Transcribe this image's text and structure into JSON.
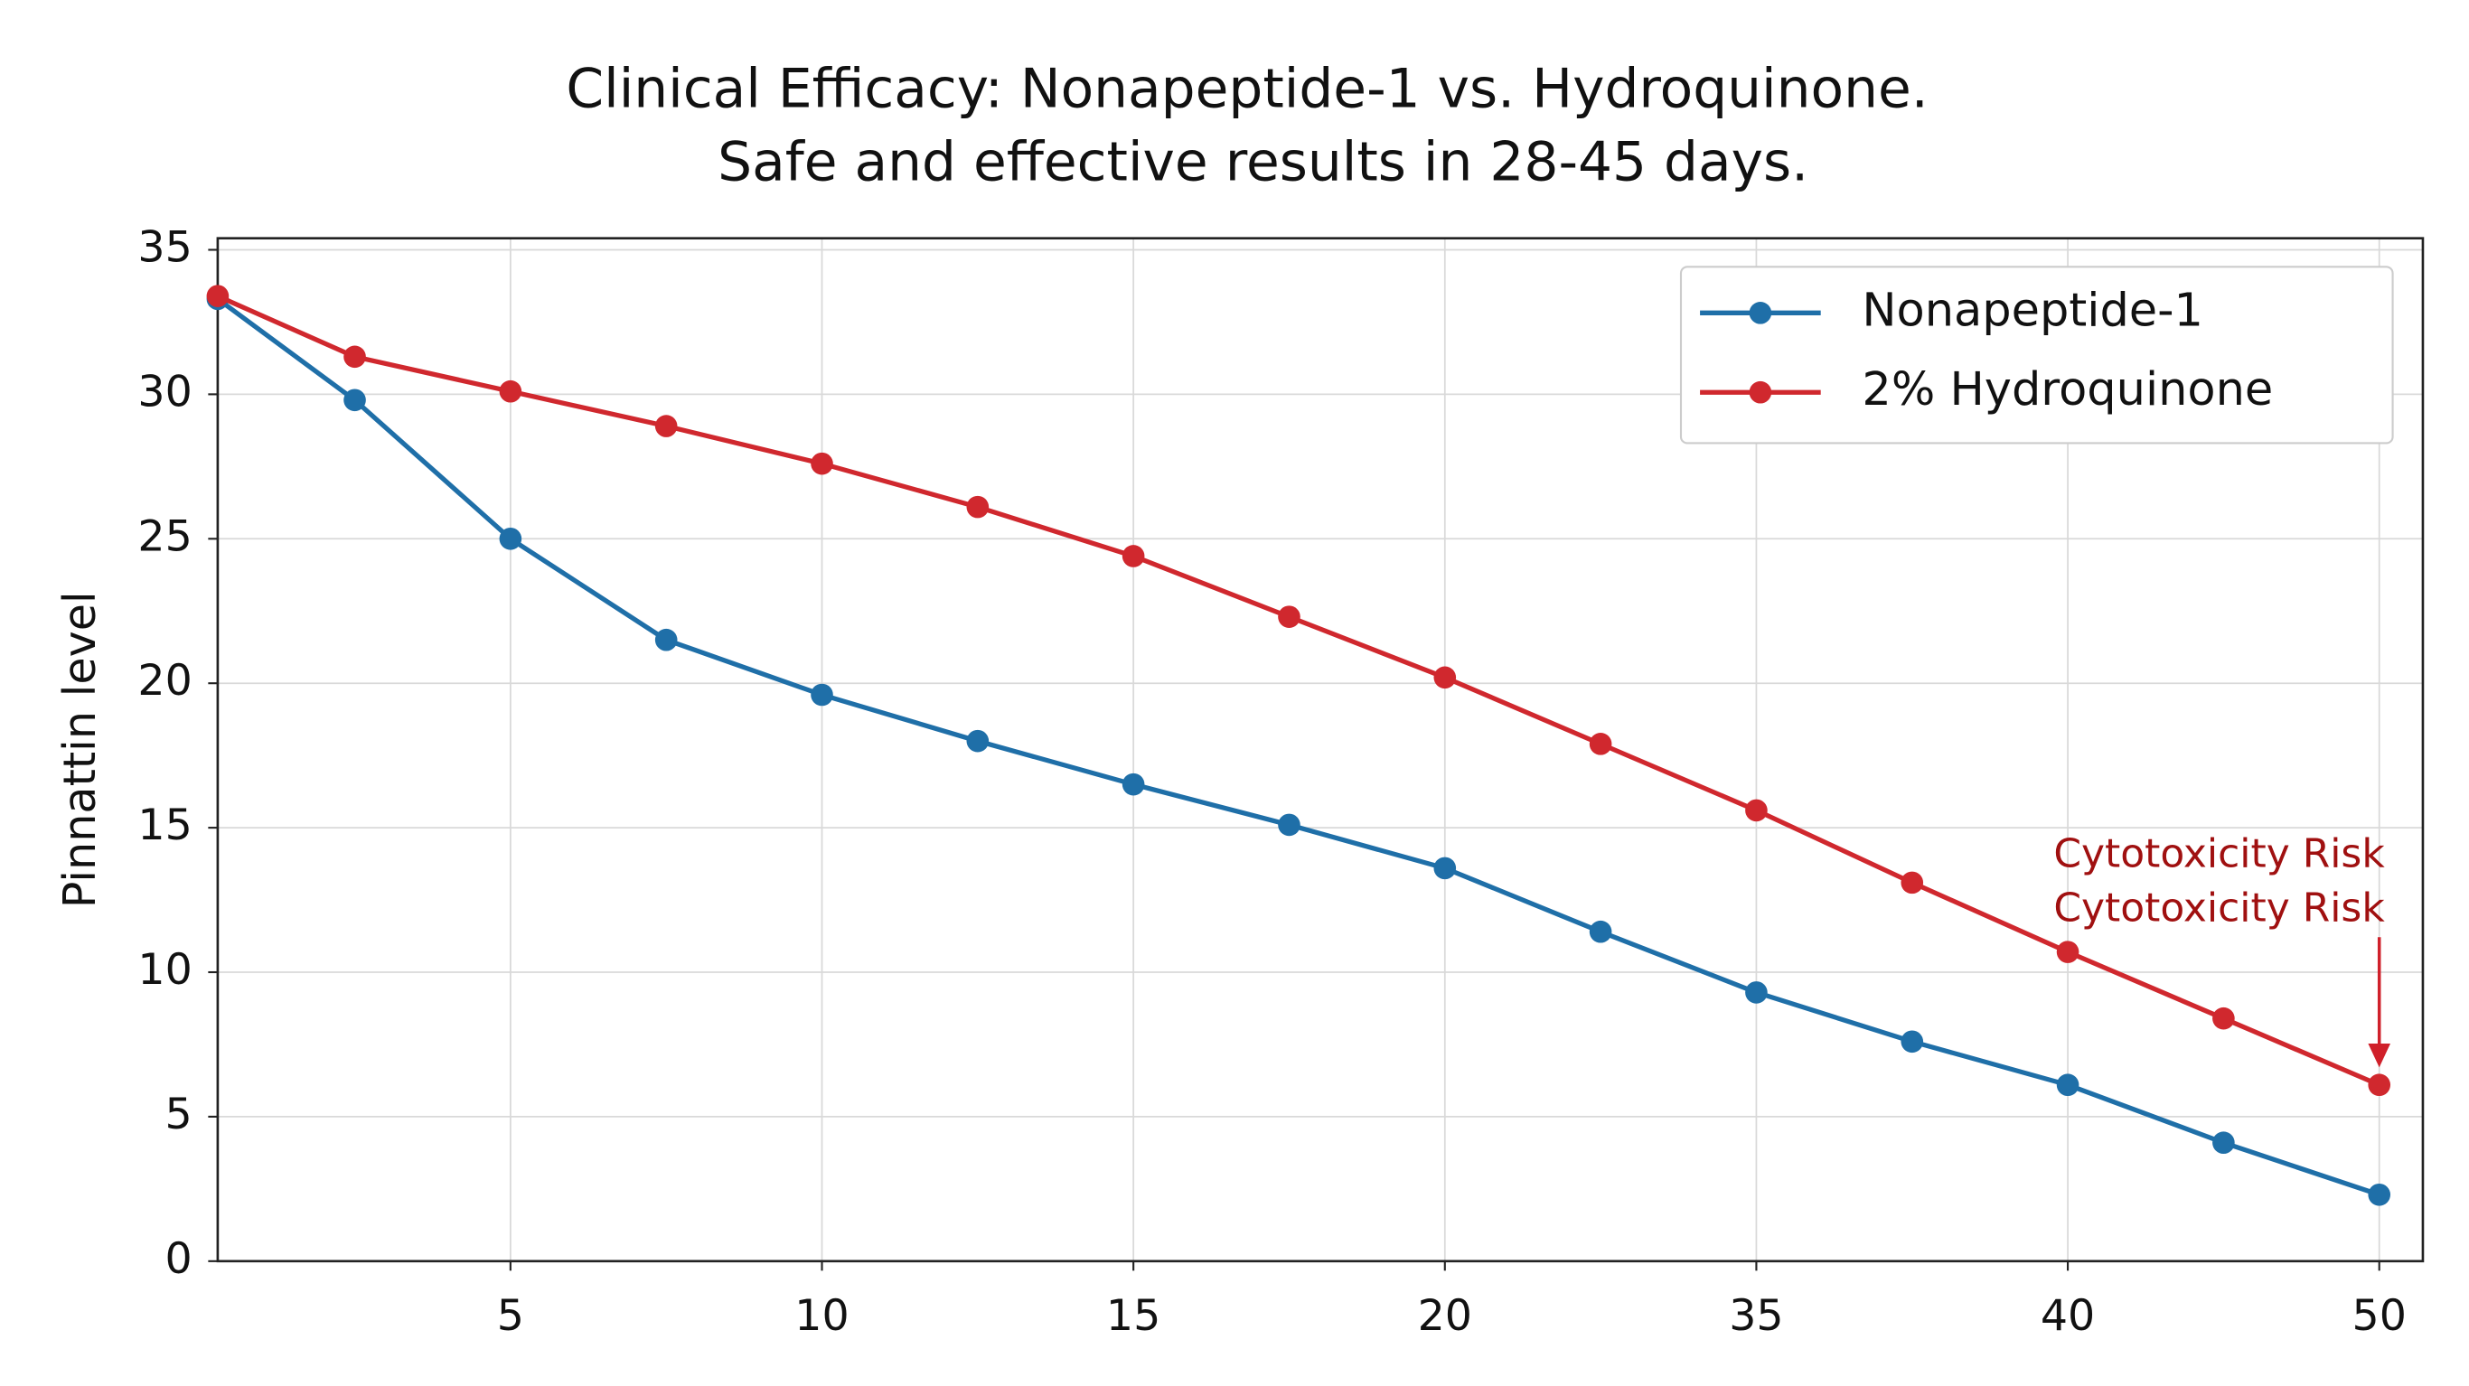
{
  "chart_data": {
    "type": "line",
    "title": "Clinical Efficacy: Nonapeptide-1 vs. Hydroquinone.",
    "subtitle": "Safe and effective results in 28-45 days.",
    "y_label": "Pinnattin level",
    "x": [
      0.3,
      2.5,
      5,
      7.5,
      10,
      12.5,
      15,
      17.5,
      20,
      22.5,
      25,
      27.5,
      30,
      32.5,
      35
    ],
    "series": [
      {
        "name": "Nonapeptide-1",
        "color": "#1f6fa8",
        "values": [
          33.3,
          29.8,
          25.0,
          21.5,
          19.6,
          18.0,
          16.5,
          15.1,
          13.6,
          11.4,
          9.3,
          7.6,
          6.1,
          4.1,
          2.3
        ]
      },
      {
        "name": "2% Hydroquinone",
        "color": "#d0282e",
        "values": [
          33.4,
          31.3,
          30.1,
          28.9,
          27.6,
          26.1,
          24.4,
          22.3,
          20.2,
          17.9,
          15.6,
          13.1,
          10.7,
          8.4,
          6.1
        ]
      }
    ],
    "xlim": [
      0.3,
      35.7
    ],
    "xticks": [
      5,
      10,
      15,
      20,
      {
        "value": 25,
        "label": "35"
      },
      {
        "value": 30,
        "label": "40"
      },
      {
        "value": 35,
        "label": "50"
      }
    ],
    "ylim": [
      0,
      35.4
    ],
    "yticks": [
      0,
      5,
      10,
      15,
      20,
      25,
      30,
      35
    ],
    "grid": true,
    "legend": "upper right",
    "annotation": {
      "texts": [
        "Cytotoxicity Risk",
        "Cytotoxicity Risk"
      ],
      "color": "#a01010",
      "series": 1,
      "point": 14
    }
  }
}
